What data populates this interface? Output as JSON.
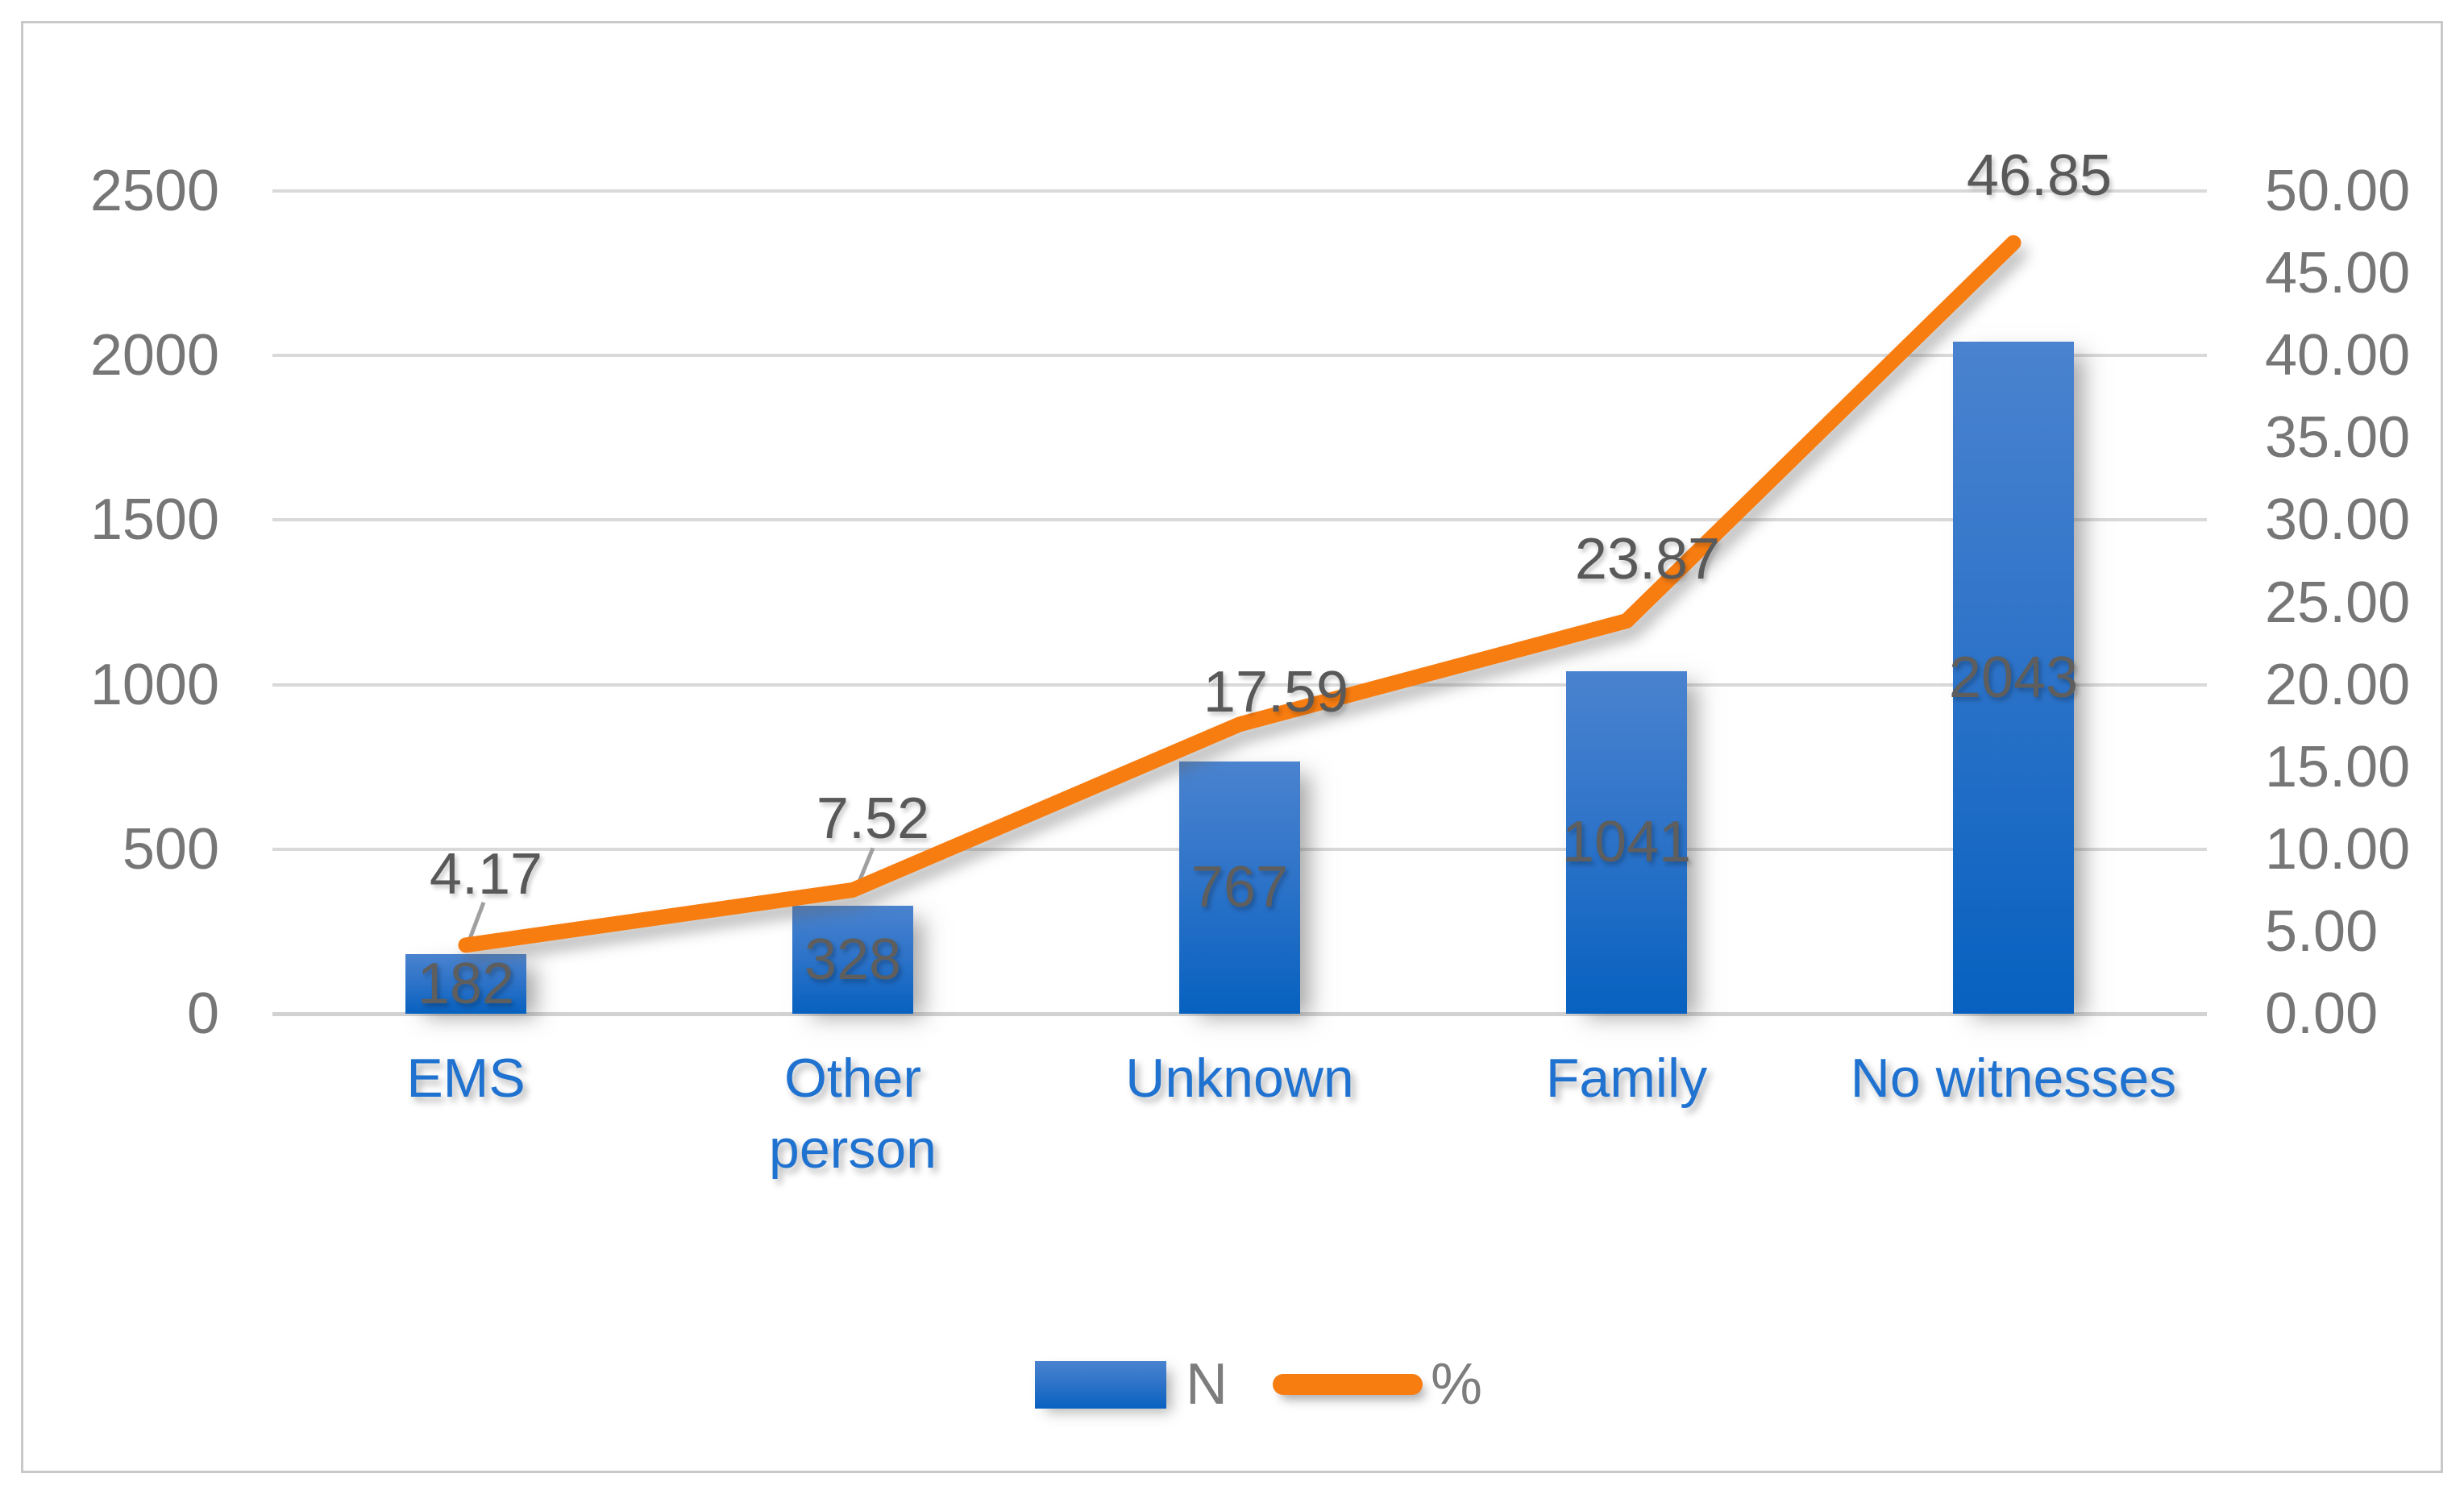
{
  "chart_data": {
    "type": "bar",
    "subtype": "combo-bar-line",
    "title": "",
    "categories": [
      "EMS",
      "Other person",
      "Unknown",
      "Family",
      "No witnesses"
    ],
    "series": [
      {
        "name": "N",
        "type": "bar",
        "axis": "left",
        "values": [
          182,
          328,
          767,
          1041,
          2043
        ]
      },
      {
        "name": "%",
        "type": "line",
        "axis": "right",
        "values": [
          4.17,
          7.52,
          17.59,
          23.87,
          46.85
        ]
      }
    ],
    "bar_labels": [
      "182",
      "328",
      "767",
      "1041",
      "2043"
    ],
    "line_labels": [
      "4.17",
      "7.52",
      "17.59",
      "23.87",
      "46.85"
    ],
    "left_axis": {
      "min": 0,
      "max": 2500,
      "step": 500,
      "ticks": [
        "2500",
        "2000",
        "1500",
        "1000",
        "500",
        "0"
      ]
    },
    "right_axis": {
      "min": 0,
      "max": 50,
      "step": 5,
      "ticks": [
        "50.00",
        "45.00",
        "40.00",
        "35.00",
        "30.00",
        "25.00",
        "20.00",
        "15.00",
        "10.00",
        "5.00",
        "0.00"
      ]
    },
    "grid": true,
    "legend_position": "bottom",
    "colors": {
      "bar_gradient_top": "#4A83CF",
      "bar_gradient_bottom": "#0761C0",
      "line": "#F87D11",
      "gridline": "#D9D9D9",
      "axis_text": "#767676",
      "data_label_text": "#595959",
      "category_text": "#1F72D0",
      "legend_text": "#7D7D7D",
      "frame_border": "#C9C9C9"
    }
  }
}
